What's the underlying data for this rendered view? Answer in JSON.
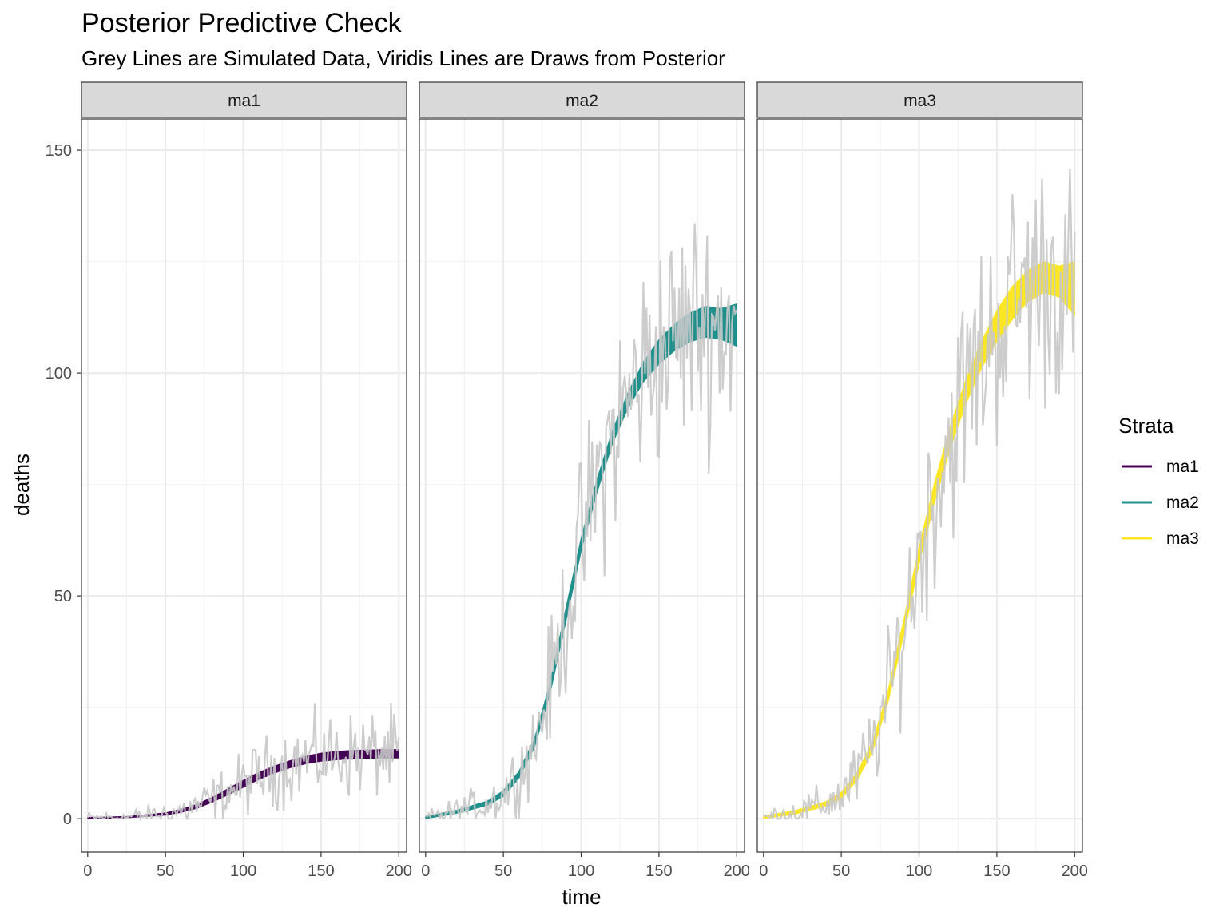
{
  "chart_data": {
    "type": "line",
    "title": "Posterior Predictive Check",
    "subtitle": "Grey Lines are Simulated Data, Viridis Lines are Draws from Posterior",
    "xlabel": "time",
    "ylabel": "deaths",
    "xlim": [
      -4,
      205
    ],
    "ylim": [
      -7.5,
      157
    ],
    "x_ticks": [
      0,
      50,
      100,
      150,
      200
    ],
    "y_ticks": [
      0,
      50,
      100,
      150
    ],
    "grid": true,
    "legend": {
      "title": "Strata",
      "position": "right",
      "entries": [
        "ma1",
        "ma2",
        "ma3"
      ]
    },
    "colors": {
      "ma1": "#440154",
      "ma2": "#21908C",
      "ma3": "#FDE725",
      "simulated": "#C8C8C8"
    },
    "panels": [
      {
        "name": "ma1",
        "posterior_band": {
          "x": [
            0,
            25,
            50,
            60,
            70,
            80,
            90,
            100,
            110,
            120,
            130,
            140,
            150,
            160,
            170,
            180,
            190,
            200
          ],
          "lower": [
            0,
            0.2,
            0.8,
            1.4,
            2.3,
            3.7,
            5.3,
            7.0,
            8.8,
            10.2,
            11.4,
            12.3,
            12.9,
            13.2,
            13.4,
            13.5,
            13.6,
            13.6
          ],
          "upper": [
            0.3,
            0.5,
            1.3,
            2.1,
            3.2,
            4.8,
            6.7,
            8.6,
            10.4,
            11.8,
            13.0,
            14.0,
            14.7,
            15.1,
            15.3,
            15.4,
            15.5,
            15.5
          ]
        },
        "simulated_peaks": [
          0,
          0.5,
          1,
          3,
          7,
          12,
          15,
          19,
          24,
          22,
          18,
          23,
          16
        ]
      },
      {
        "name": "ma2",
        "posterior_band": {
          "x": [
            0,
            20,
            40,
            50,
            60,
            70,
            80,
            90,
            100,
            110,
            120,
            130,
            140,
            150,
            160,
            170,
            180,
            190,
            200
          ],
          "lower": [
            0,
            1.2,
            3.0,
            5.0,
            9.0,
            16.0,
            28.0,
            44.0,
            60.0,
            73.0,
            84.0,
            92.0,
            98.0,
            102.0,
            105.0,
            107.0,
            108.0,
            107.5,
            106.0
          ],
          "upper": [
            0.5,
            1.9,
            4.0,
            6.3,
            10.6,
            18.0,
            30.5,
            47.0,
            63.0,
            76.0,
            87.0,
            95.5,
            102.5,
            107.5,
            111.0,
            113.5,
            115.0,
            114.5,
            115.5
          ]
        },
        "simulated_peaks": [
          0,
          3,
          8,
          20,
          45,
          80,
          100,
          118,
          129,
          133,
          120,
          119
        ]
      },
      {
        "name": "ma3",
        "posterior_band": {
          "x": [
            0,
            20,
            40,
            50,
            60,
            70,
            80,
            90,
            100,
            110,
            120,
            130,
            140,
            150,
            160,
            170,
            180,
            190,
            200
          ],
          "lower": [
            0,
            1.0,
            2.8,
            4.5,
            8.5,
            15.0,
            26.0,
            41.0,
            57.0,
            71.0,
            83.0,
            93.0,
            101.0,
            107.0,
            112.0,
            116.0,
            118.0,
            117.0,
            113.0
          ],
          "upper": [
            0.6,
            1.8,
            3.8,
            5.9,
            10.3,
            17.2,
            28.7,
            44.4,
            61.0,
            75.5,
            88.0,
            98.5,
            107.0,
            114.0,
            119.5,
            123.0,
            125.0,
            124.0,
            125.0
          ]
        },
        "simulated_peaks": [
          0,
          3,
          8,
          20,
          60,
          85,
          110,
          130,
          137,
          144,
          149,
          145,
          140
        ]
      }
    ]
  }
}
